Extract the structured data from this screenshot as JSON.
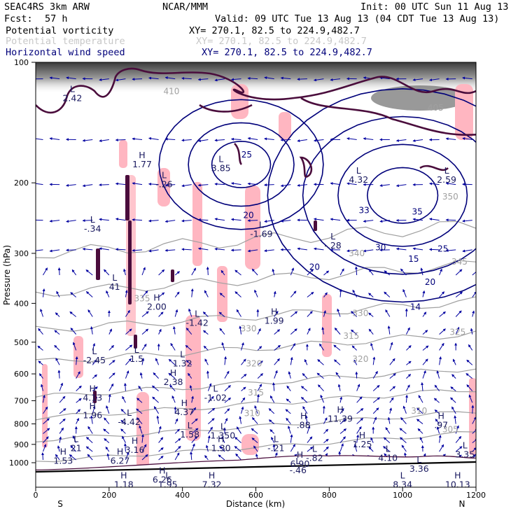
{
  "header": {
    "model": "SEAC4RS  3km ARW",
    "org": "NCAR/MMM",
    "init": "Init: 00 UTC Sun 11 Aug 13",
    "fcst_label": "Fcst:",
    "fcst_value": "57 h",
    "valid": "Valid: 09 UTC Tue 13 Aug 13 (04 CDT Tue 13 Aug 13)",
    "fields": [
      {
        "name": "Potential vorticity",
        "xy": "XY= 270.1, 82.5 to 224.9,482.7",
        "color": "#000000"
      },
      {
        "name": "Potential temperature",
        "xy": "XY= 270.1, 82.5 to 224.9,482.7",
        "color": "#c8c8c8"
      },
      {
        "name": "Horizontal wind speed",
        "xy": "XY= 270.1, 82.5 to 224.9,482.7",
        "color": "#00007a"
      }
    ]
  },
  "colors": {
    "pv_contour": "#4a0d3c",
    "theta": "#a0a0a0",
    "wind_speed": "#00007a",
    "vectors": "#0000a0",
    "shading": "#ffb6c1",
    "hl_labels": "#1a1a60"
  },
  "chart_data": {
    "type": "cross-section",
    "x_axis": {
      "label": "Distance (km)",
      "range": [
        0,
        1200
      ],
      "ticks": [
        0,
        200,
        400,
        600,
        800,
        1000,
        1200
      ],
      "end_labels": {
        "left": "S",
        "right": "N"
      }
    },
    "y_axis": {
      "label": "Pressure (hPa)",
      "range": [
        1000,
        100
      ],
      "log": true,
      "ticks": [
        100,
        200,
        300,
        400,
        500,
        600,
        700,
        800,
        900,
        1000
      ]
    },
    "theta_contours": [
      {
        "level": "305",
        "p_at_right": 840
      },
      {
        "level": "310",
        "p_at_right": 745
      },
      {
        "level": "315",
        "p_at_right": 655
      },
      {
        "level": "320",
        "p_at_right": 580
      },
      {
        "level": "325",
        "p_at_right": 475
      },
      {
        "level": "330",
        "p_at_right": 395
      },
      {
        "level": "335",
        "p_at_right": 320
      },
      {
        "level": "340",
        "p_at_right": 255
      }
    ],
    "theta_labels": [
      {
        "text": "305",
        "x": 1130,
        "p": 840
      },
      {
        "text": "310",
        "x": 1045,
        "p": 755
      },
      {
        "text": "310",
        "x": 590,
        "p": 765
      },
      {
        "text": "315",
        "x": 600,
        "p": 680
      },
      {
        "text": "315",
        "x": 860,
        "p": 490
      },
      {
        "text": "320",
        "x": 595,
        "p": 575
      },
      {
        "text": "320",
        "x": 885,
        "p": 560
      },
      {
        "text": "325",
        "x": 1150,
        "p": 480
      },
      {
        "text": "330",
        "x": 580,
        "p": 470
      },
      {
        "text": "330",
        "x": 885,
        "p": 430
      },
      {
        "text": "335",
        "x": 290,
        "p": 395
      },
      {
        "text": "340",
        "x": 875,
        "p": 305
      },
      {
        "text": "345",
        "x": 1155,
        "p": 320
      },
      {
        "text": "350",
        "x": 1130,
        "p": 220
      },
      {
        "text": "405",
        "x": 1090,
        "p": 132
      },
      {
        "text": "410",
        "x": 370,
        "p": 120
      }
    ],
    "wind_speed_labels": [
      {
        "text": "25",
        "x": 575,
        "p": 173
      },
      {
        "text": "20",
        "x": 580,
        "p": 245
      },
      {
        "text": "20",
        "x": 760,
        "p": 330
      },
      {
        "text": "30",
        "x": 940,
        "p": 295
      },
      {
        "text": "35",
        "x": 1040,
        "p": 240
      },
      {
        "text": "20",
        "x": 1075,
        "p": 360
      },
      {
        "text": "15",
        "x": 1030,
        "p": 315
      },
      {
        "text": "25",
        "x": 1110,
        "p": 297
      },
      {
        "text": "14",
        "x": 1035,
        "p": 415
      },
      {
        "text": "33",
        "x": 895,
        "p": 238
      }
    ],
    "highs_lows": [
      {
        "type": "L",
        "value": "2.42",
        "x": 100,
        "p": 125
      },
      {
        "type": "H",
        "value": "1.77",
        "x": 290,
        "p": 183
      },
      {
        "type": "L",
        "value": "-.26",
        "x": 350,
        "p": 205
      },
      {
        "type": "L",
        "value": "-.34",
        "x": 155,
        "p": 265
      },
      {
        "type": "L",
        "value": "3.85",
        "x": 505,
        "p": 187
      },
      {
        "type": "L",
        "value": "-1.69",
        "x": 615,
        "p": 273
      },
      {
        "type": "L",
        "value": "4.32",
        "x": 880,
        "p": 200
      },
      {
        "type": "L",
        "value": "-.28",
        "x": 810,
        "p": 292
      },
      {
        "type": "L",
        "value": "2.59",
        "x": 1120,
        "p": 200
      },
      {
        "type": "L",
        "value": "41",
        "x": 215,
        "p": 370
      },
      {
        "type": "H",
        "value": "2.00",
        "x": 330,
        "p": 415
      },
      {
        "type": "L",
        "value": "-1.42",
        "x": 440,
        "p": 455
      },
      {
        "type": "H",
        "value": "1.99",
        "x": 650,
        "p": 450
      },
      {
        "type": "L",
        "value": "-2.45",
        "x": 160,
        "p": 565
      },
      {
        "type": "L",
        "value": "1.5",
        "x": 275,
        "p": 560
      },
      {
        "type": "L",
        "value": "1.32",
        "x": 400,
        "p": 575
      },
      {
        "type": "H",
        "value": "2.38",
        "x": 375,
        "p": 640
      },
      {
        "type": "H",
        "value": "4.13",
        "x": 155,
        "p": 700
      },
      {
        "type": "L",
        "value": "-1.02",
        "x": 490,
        "p": 700
      },
      {
        "type": "H",
        "value": "4.37",
        "x": 405,
        "p": 760
      },
      {
        "type": "L",
        "value": "-4.42",
        "x": 255,
        "p": 805
      },
      {
        "type": "H",
        "value": "11.39",
        "x": 830,
        "p": 790
      },
      {
        "type": "H",
        "value": ".88",
        "x": 730,
        "p": 820
      },
      {
        "type": "H",
        "value": ".97",
        "x": 1105,
        "p": 820
      },
      {
        "type": "L",
        "value": "1.58",
        "x": 420,
        "p": 865
      },
      {
        "type": "H",
        "value": "1.25",
        "x": 890,
        "p": 915
      },
      {
        "type": "H",
        "value": "1.30",
        "x": 505,
        "p": 935
      },
      {
        "type": "L",
        "value": "-.21",
        "x": 655,
        "p": 935
      },
      {
        "type": "L",
        "value": "21",
        "x": 110,
        "p": 935
      },
      {
        "type": "H",
        "value": "3.16",
        "x": 270,
        "p": 945
      },
      {
        "type": "L",
        "value": "4.10",
        "x": 960,
        "p": 990
      },
      {
        "type": "L",
        "value": "-.82",
        "x": 760,
        "p": 990
      },
      {
        "type": "H",
        "value": "1.96",
        "x": 155,
        "p": 1025
      },
      {
        "type": "L",
        "value": "1.350",
        "x": 510,
        "p": 1090
      },
      {
        "type": "H",
        "value": "1.53",
        "x": 75,
        "p": 1170
      },
      {
        "type": "H",
        "value": "6.27",
        "x": 230,
        "p": 1170
      },
      {
        "type": "L",
        "value": "3.35",
        "x": 1170,
        "p": 1150
      },
      {
        "type": "H",
        "value": "6.90",
        "x": 720,
        "p": 1180
      },
      {
        "type": "L",
        "value": "-.46",
        "x": 715,
        "p": 1200
      },
      {
        "type": "L",
        "value": "3.36",
        "x": 1045,
        "p": 1195
      },
      {
        "type": "H",
        "value": "6.26",
        "x": 345,
        "p": 1230
      },
      {
        "type": "L",
        "value": "1.95",
        "x": 360,
        "p": 1245
      },
      {
        "type": "H",
        "value": "1.18",
        "x": 240,
        "p": 1245
      },
      {
        "type": "H",
        "value": "7.32",
        "x": 480,
        "p": 1245
      },
      {
        "type": "L",
        "value": "8.34",
        "x": 1000,
        "p": 1245
      },
      {
        "type": "H",
        "value": "10.13",
        "x": 1150,
        "p": 1245
      }
    ]
  }
}
